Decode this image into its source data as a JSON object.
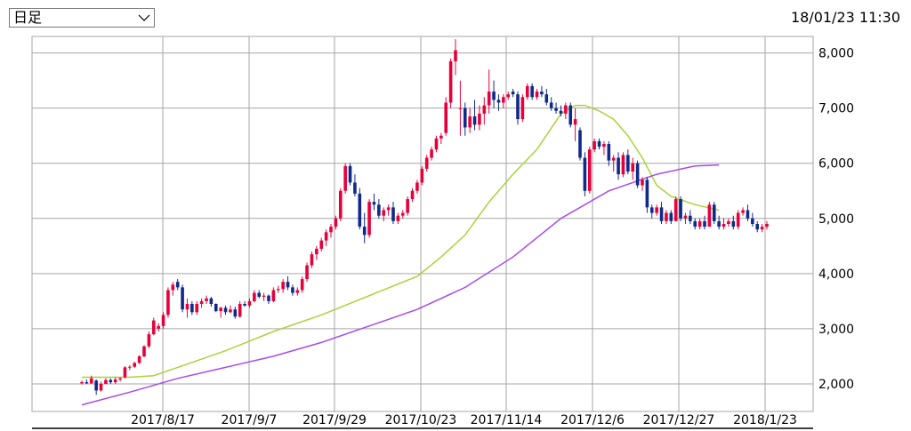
{
  "header": {
    "period_label": "日足",
    "timestamp": "18/01/23 11:30"
  },
  "colors": {
    "up_candle": "#e8003c",
    "down_candle": "#0f2a8a",
    "ma_short": "#a8d33a",
    "ma_long": "#a64af0",
    "grid": "#a6a6a6"
  },
  "chart_data": {
    "type": "candlestick",
    "ylim": [
      1500,
      8300
    ],
    "y_ticks": [
      2000,
      3000,
      4000,
      5000,
      6000,
      7000,
      8000
    ],
    "y_tick_labels": [
      "2,000",
      "3,000",
      "4,000",
      "5,000",
      "6,000",
      "7,000",
      "8,000"
    ],
    "x_tick_labels": [
      "2017/8/17",
      "2017/9/7",
      "2017/9/29",
      "2017/10/23",
      "2017/11/14",
      "2017/12/6",
      "2017/12/27",
      "2018/1/23"
    ],
    "candles": [
      [
        2010,
        2060,
        1990,
        2030
      ],
      [
        2030,
        2080,
        2000,
        2010
      ],
      [
        2010,
        2150,
        2000,
        2100
      ],
      [
        2060,
        2080,
        1800,
        1880
      ],
      [
        1880,
        2040,
        1860,
        2000
      ],
      [
        2000,
        2100,
        1990,
        2070
      ],
      [
        2070,
        2100,
        2000,
        2030
      ],
      [
        2030,
        2120,
        2000,
        2080
      ],
      [
        2080,
        2120,
        2040,
        2100
      ],
      [
        2120,
        2320,
        2100,
        2300
      ],
      [
        2300,
        2340,
        2250,
        2310
      ],
      [
        2310,
        2400,
        2290,
        2380
      ],
      [
        2380,
        2520,
        2360,
        2500
      ],
      [
        2500,
        2700,
        2480,
        2680
      ],
      [
        2680,
        2950,
        2650,
        2900
      ],
      [
        2900,
        3200,
        2880,
        3150
      ],
      [
        3000,
        3100,
        2950,
        3050
      ],
      [
        3050,
        3300,
        3000,
        3250
      ],
      [
        3250,
        3750,
        3200,
        3700
      ],
      [
        3700,
        3850,
        3600,
        3800
      ],
      [
        3850,
        3900,
        3700,
        3750
      ],
      [
        3750,
        3800,
        3300,
        3350
      ],
      [
        3350,
        3550,
        3200,
        3450
      ],
      [
        3450,
        3500,
        3250,
        3300
      ],
      [
        3300,
        3500,
        3250,
        3450
      ],
      [
        3450,
        3550,
        3380,
        3500
      ],
      [
        3500,
        3600,
        3450,
        3550
      ],
      [
        3550,
        3580,
        3400,
        3450
      ],
      [
        3450,
        3460,
        3300,
        3320
      ],
      [
        3320,
        3400,
        3200,
        3380
      ],
      [
        3380,
        3420,
        3250,
        3300
      ],
      [
        3300,
        3420,
        3280,
        3350
      ],
      [
        3350,
        3400,
        3180,
        3220
      ],
      [
        3220,
        3500,
        3200,
        3450
      ],
      [
        3450,
        3500,
        3400,
        3420
      ],
      [
        3420,
        3550,
        3380,
        3500
      ],
      [
        3500,
        3700,
        3480,
        3650
      ],
      [
        3650,
        3700,
        3550,
        3580
      ],
      [
        3580,
        3650,
        3500,
        3600
      ],
      [
        3600,
        3620,
        3450,
        3500
      ],
      [
        3500,
        3750,
        3480,
        3700
      ],
      [
        3700,
        3780,
        3650,
        3720
      ],
      [
        3720,
        3900,
        3650,
        3850
      ],
      [
        3850,
        3950,
        3700,
        3750
      ],
      [
        3750,
        3800,
        3600,
        3650
      ],
      [
        3650,
        3750,
        3600,
        3700
      ],
      [
        3700,
        3950,
        3650,
        3900
      ],
      [
        3900,
        4200,
        3850,
        4150
      ],
      [
        4150,
        4400,
        4100,
        4350
      ],
      [
        4350,
        4500,
        4250,
        4450
      ],
      [
        4450,
        4650,
        4400,
        4600
      ],
      [
        4600,
        4800,
        4500,
        4750
      ],
      [
        4750,
        4900,
        4650,
        4850
      ],
      [
        4850,
        5050,
        4800,
        5000
      ],
      [
        5000,
        5550,
        4950,
        5500
      ],
      [
        5500,
        6000,
        5450,
        5950
      ],
      [
        5950,
        6000,
        5600,
        5650
      ],
      [
        5650,
        5800,
        5400,
        5450
      ],
      [
        5450,
        5550,
        4800,
        4850
      ],
      [
        4850,
        5100,
        4550,
        4700
      ],
      [
        4700,
        5350,
        4650,
        5300
      ],
      [
        5300,
        5450,
        5150,
        5250
      ],
      [
        5250,
        5350,
        5000,
        5050
      ],
      [
        5050,
        5200,
        4950,
        5150
      ],
      [
        5150,
        5250,
        5050,
        5200
      ],
      [
        5200,
        5300,
        4900,
        4950
      ],
      [
        4950,
        5100,
        4900,
        5050
      ],
      [
        5050,
        5150,
        5000,
        5100
      ],
      [
        5100,
        5400,
        5050,
        5350
      ],
      [
        5350,
        5550,
        5300,
        5500
      ],
      [
        5500,
        5700,
        5450,
        5650
      ],
      [
        5650,
        5950,
        5600,
        5900
      ],
      [
        5900,
        6150,
        5850,
        6100
      ],
      [
        6100,
        6300,
        6050,
        6250
      ],
      [
        6250,
        6500,
        6200,
        6450
      ],
      [
        6450,
        6550,
        6350,
        6500
      ],
      [
        6550,
        7200,
        6500,
        7100
      ],
      [
        7100,
        7900,
        7000,
        7850
      ],
      [
        7850,
        8250,
        7600,
        8050
      ],
      [
        7000,
        7500,
        6500,
        7000
      ],
      [
        7000,
        7100,
        6500,
        6650
      ],
      [
        6650,
        7000,
        6550,
        6850
      ],
      [
        6850,
        7150,
        6600,
        6700
      ],
      [
        6700,
        7050,
        6600,
        6900
      ],
      [
        6900,
        7200,
        6700,
        7050
      ],
      [
        7050,
        7700,
        6900,
        7300
      ],
      [
        7300,
        7500,
        7000,
        7150
      ],
      [
        7150,
        7250,
        6950,
        7100
      ],
      [
        7100,
        7250,
        7000,
        7200
      ],
      [
        7200,
        7300,
        7150,
        7250
      ],
      [
        7300,
        7350,
        7200,
        7250
      ],
      [
        7250,
        7300,
        6700,
        6800
      ],
      [
        6800,
        7250,
        6750,
        7200
      ],
      [
        7200,
        7450,
        7150,
        7400
      ],
      [
        7400,
        7450,
        7150,
        7200
      ],
      [
        7200,
        7350,
        7150,
        7300
      ],
      [
        7300,
        7400,
        7200,
        7250
      ],
      [
        7250,
        7350,
        7050,
        7100
      ],
      [
        7100,
        7200,
        6950,
        7000
      ],
      [
        7000,
        7100,
        6900,
        6950
      ],
      [
        6950,
        7050,
        6850,
        6900
      ],
      [
        6900,
        7100,
        6800,
        7050
      ],
      [
        7050,
        7100,
        6650,
        6700
      ],
      [
        6700,
        7000,
        6400,
        6800
      ],
      [
        6600,
        6650,
        6050,
        6100
      ],
      [
        6100,
        6200,
        5400,
        5500
      ],
      [
        5500,
        6300,
        5450,
        6250
      ],
      [
        6250,
        6450,
        6200,
        6400
      ],
      [
        6400,
        6450,
        6250,
        6300
      ],
      [
        6300,
        6400,
        6150,
        6350
      ],
      [
        6350,
        6400,
        5950,
        6050
      ],
      [
        6050,
        6150,
        5850,
        6100
      ],
      [
        6100,
        6200,
        5700,
        5800
      ],
      [
        5800,
        6200,
        5750,
        6150
      ],
      [
        6150,
        6250,
        5800,
        5850
      ],
      [
        5850,
        6100,
        5700,
        6000
      ],
      [
        6000,
        6050,
        5550,
        5600
      ],
      [
        5600,
        5750,
        5500,
        5700
      ],
      [
        5700,
        5750,
        5100,
        5200
      ],
      [
        5200,
        5250,
        5000,
        5100
      ],
      [
        5100,
        5250,
        5050,
        5200
      ],
      [
        5200,
        5300,
        4900,
        4950
      ],
      [
        4950,
        5150,
        4900,
        5100
      ],
      [
        5100,
        5150,
        4900,
        4950
      ],
      [
        4950,
        5400,
        4950,
        5350
      ],
      [
        5350,
        5400,
        4950,
        5000
      ],
      [
        5000,
        5100,
        4900,
        5050
      ],
      [
        5050,
        5150,
        4900,
        4950
      ],
      [
        4950,
        5000,
        4800,
        4850
      ],
      [
        4850,
        5000,
        4800,
        4950
      ],
      [
        4950,
        5050,
        4800,
        4850
      ],
      [
        4850,
        5300,
        4850,
        5250
      ],
      [
        5250,
        5300,
        4900,
        4950
      ],
      [
        4950,
        5050,
        4800,
        4850
      ],
      [
        4850,
        5000,
        4800,
        4900
      ],
      [
        4900,
        5000,
        4850,
        4950
      ],
      [
        4950,
        5050,
        4800,
        4850
      ],
      [
        4850,
        5150,
        4800,
        5100
      ],
      [
        5100,
        5200,
        5050,
        5150
      ],
      [
        5150,
        5250,
        4950,
        5000
      ],
      [
        5000,
        5100,
        4850,
        4900
      ],
      [
        4900,
        4950,
        4750,
        4800
      ],
      [
        4800,
        4900,
        4750,
        4850
      ],
      [
        4850,
        4950,
        4800,
        4900
      ]
    ],
    "series": [
      {
        "name": "",
        "color": "#a8d33a",
        "values": [
          [
            0,
            2120
          ],
          [
            5,
            2120
          ],
          [
            10,
            2120
          ],
          [
            15,
            2150
          ],
          [
            20,
            2300
          ],
          [
            30,
            2600
          ],
          [
            40,
            2950
          ],
          [
            50,
            3250
          ],
          [
            60,
            3600
          ],
          [
            70,
            3950
          ],
          [
            75,
            4300
          ],
          [
            80,
            4700
          ],
          [
            85,
            5300
          ],
          [
            90,
            5800
          ],
          [
            95,
            6250
          ],
          [
            100,
            6900
          ],
          [
            103,
            7050
          ],
          [
            105,
            7050
          ],
          [
            108,
            6950
          ],
          [
            111,
            6800
          ],
          [
            114,
            6500
          ],
          [
            117,
            6100
          ],
          [
            120,
            5600
          ],
          [
            123,
            5400
          ],
          [
            128,
            5250
          ],
          [
            133,
            5150
          ]
        ]
      },
      {
        "name": "",
        "color": "#a64af0",
        "values": [
          [
            0,
            1620
          ],
          [
            10,
            1850
          ],
          [
            20,
            2100
          ],
          [
            30,
            2300
          ],
          [
            40,
            2500
          ],
          [
            50,
            2750
          ],
          [
            60,
            3050
          ],
          [
            70,
            3350
          ],
          [
            80,
            3750
          ],
          [
            90,
            4300
          ],
          [
            100,
            5000
          ],
          [
            110,
            5500
          ],
          [
            120,
            5800
          ],
          [
            128,
            5950
          ],
          [
            133,
            5970
          ]
        ]
      }
    ]
  }
}
